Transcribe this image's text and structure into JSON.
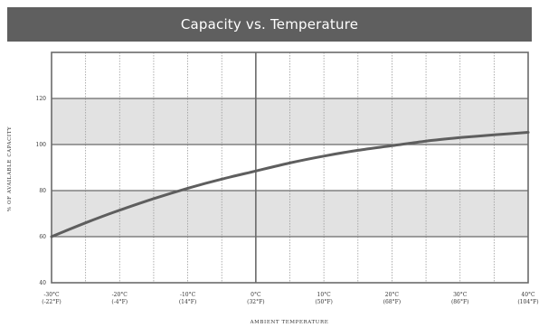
{
  "chart_data": {
    "type": "line",
    "title": "Capacity vs. Temperature",
    "xlabel": "AMBIENT TEMPERATURE",
    "ylabel": "% OF AVAILABLE CAPACITY",
    "x_unit": "°C",
    "xlim": [
      -30,
      40
    ],
    "ylim": [
      40,
      140
    ],
    "x_ticks": [
      {
        "value": -30,
        "c": "-30°C",
        "f": "(-22°F)"
      },
      {
        "value": -20,
        "c": "-20°C",
        "f": "(-4°F)"
      },
      {
        "value": -10,
        "c": "-10°C",
        "f": "(14°F)"
      },
      {
        "value": 0,
        "c": "0°C",
        "f": "(32°F)"
      },
      {
        "value": 10,
        "c": "10°C",
        "f": "(50°F)"
      },
      {
        "value": 20,
        "c": "20°C",
        "f": "(68°F)"
      },
      {
        "value": 30,
        "c": "30°C",
        "f": "(86°F)"
      },
      {
        "value": 40,
        "c": "40°C",
        "f": "(104°F)"
      }
    ],
    "y_ticks": [
      40,
      60,
      80,
      100,
      120
    ],
    "shaded_bands": [
      [
        60,
        80
      ],
      [
        100,
        120
      ]
    ],
    "series": [
      {
        "x": [
          -30,
          -25,
          -20,
          -15,
          -10,
          -5,
          0,
          5,
          10,
          15,
          20,
          25,
          30,
          35,
          40
        ],
        "y": [
          60,
          66,
          71.5,
          76.5,
          81,
          85,
          88.5,
          92,
          95,
          97.5,
          99.5,
          101.5,
          103,
          104.2,
          105.3
        ]
      }
    ],
    "grid": true,
    "colors": {
      "title_bar": "#5f5f5f",
      "band": "#e2e2e2",
      "line": "#5e5e5e",
      "frame": "#6a6a6a",
      "gridline": "#9a9a9a"
    }
  }
}
